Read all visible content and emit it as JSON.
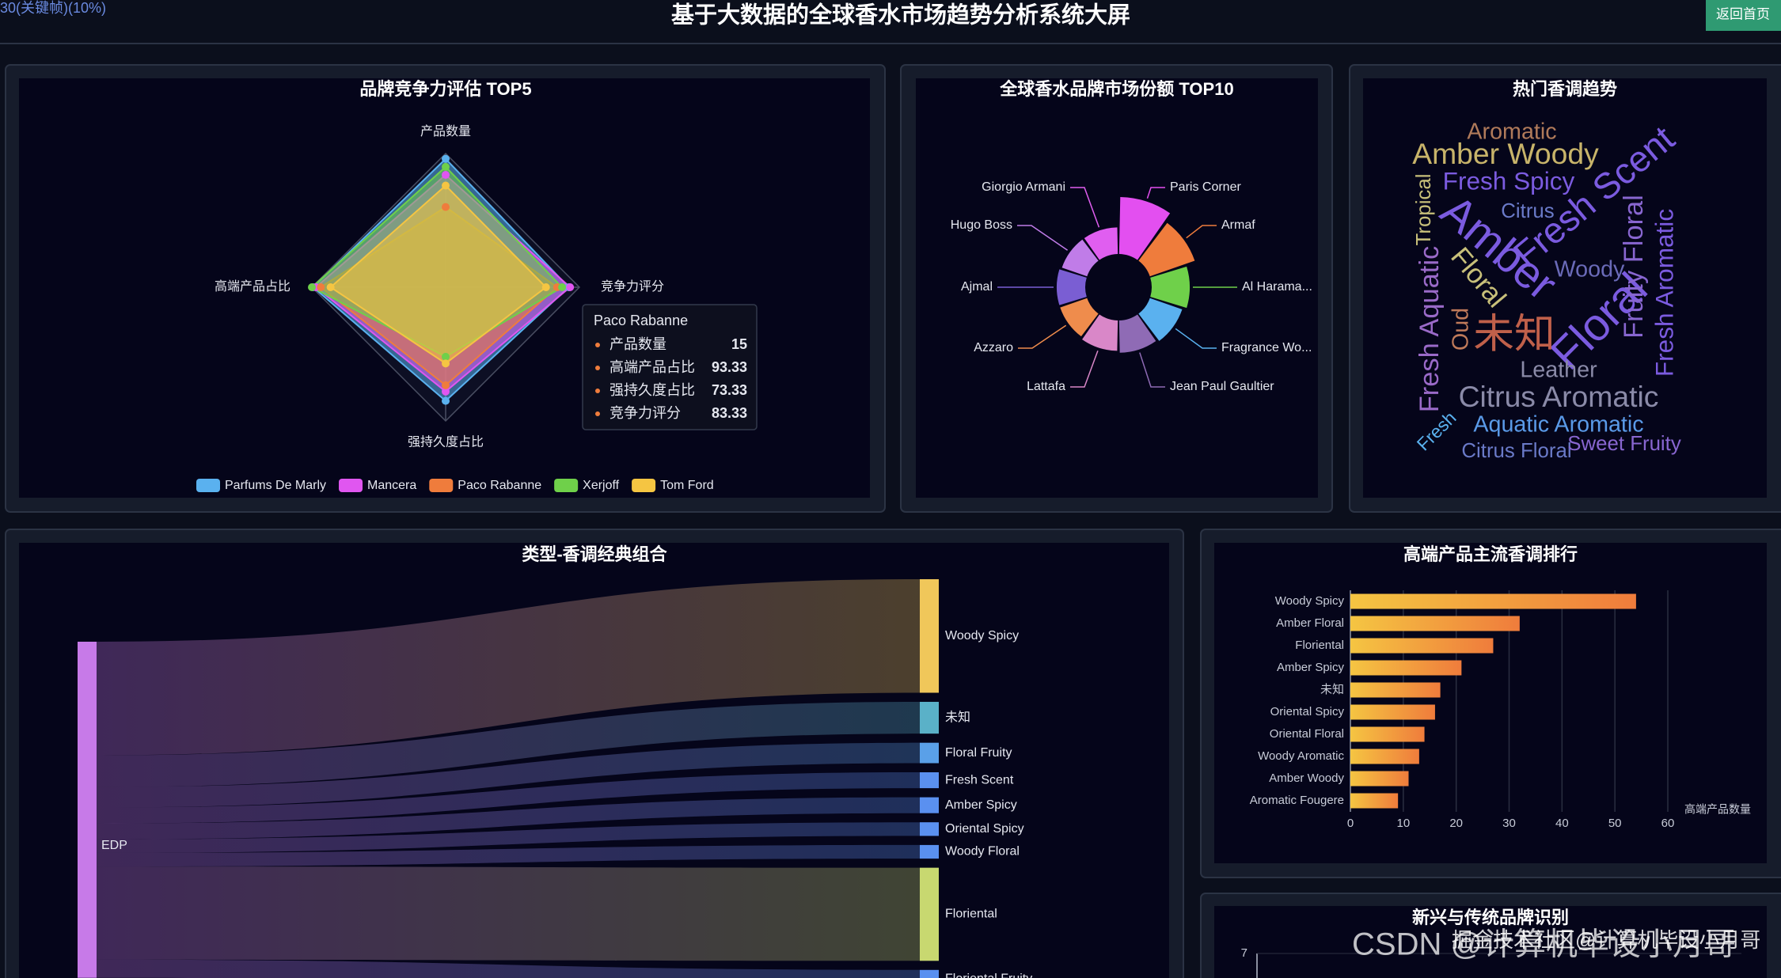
{
  "header": {
    "title": "基于大数据的全球香水市场趋势分析系统大屏",
    "frame_note": "30(关键帧)(10%)",
    "back_button": "返回首页"
  },
  "radar": {
    "type": "radar",
    "title": "品牌竞争力评估 TOP5",
    "indicators": [
      {
        "name": "产品数量",
        "max": 25
      },
      {
        "name": "高端产品占比",
        "max": 100
      },
      {
        "name": "强持久度占比",
        "max": 100
      },
      {
        "name": "竞争力评分",
        "max": 100
      }
    ],
    "series": [
      {
        "name": "Parfums De Marly",
        "color": "#5ab1ef",
        "values": [
          24,
          99,
          85,
          92
        ]
      },
      {
        "name": "Mancera",
        "color": "#e056f0",
        "values": [
          21,
          97,
          78,
          93
        ]
      },
      {
        "name": "Paco Rabanne",
        "color": "#ef7c3c",
        "values": [
          15,
          93.33,
          73.33,
          83.33
        ]
      },
      {
        "name": "Xerjoff",
        "color": "#6fd04a",
        "values": [
          22.5,
          100,
          52,
          87
        ]
      },
      {
        "name": "Tom Ford",
        "color": "#f5c542",
        "values": [
          19,
          86,
          57,
          75
        ]
      }
    ]
  },
  "pie": {
    "type": "pie",
    "title": "全球香水品牌市场份额 TOP10",
    "categories": [
      "Paris Corner",
      "Armaf",
      "Al Harama...",
      "Fragrance Wo...",
      "Jean Paul Gaultier",
      "Lattafa",
      "Azzaro",
      "Ajmal",
      "Hugo Boss",
      "Giorgio Armani"
    ],
    "values": [
      30,
      25,
      20,
      18,
      17,
      16,
      15,
      15,
      14,
      14
    ],
    "colors": [
      "#e34ff0",
      "#ef7c3c",
      "#6fd04a",
      "#5ab1ef",
      "#8f6bb5",
      "#d987c8",
      "#ef8c4c",
      "#7a5ed3",
      "#c07ce8",
      "#e05ef0"
    ]
  },
  "wordcloud": {
    "type": "wordcloud",
    "title": "热门香调趋势",
    "words": [
      {
        "text": "Aromatic",
        "color": "#b07a5a",
        "weight": 20
      },
      {
        "text": "Amber Woody",
        "color": "#c8b46a",
        "weight": 26
      },
      {
        "text": "Fresh Spicy",
        "color": "#7b5be0",
        "weight": 22
      },
      {
        "text": "Citrus",
        "color": "#6a7ac8",
        "weight": 18
      },
      {
        "text": "Fresh Scent",
        "color": "#7b5be0",
        "weight": 32
      },
      {
        "text": "Amber",
        "color": "#7b5be0",
        "weight": 40
      },
      {
        "text": "Floral",
        "color": "#7b5be0",
        "weight": 40
      },
      {
        "text": "Tropical",
        "color": "#c8c07a",
        "weight": 18
      },
      {
        "text": "Floral",
        "color": "#c8c07a",
        "weight": 24
      },
      {
        "text": "Woody",
        "color": "#6a6ab8",
        "weight": 20
      },
      {
        "text": "Fruity Floral",
        "color": "#8866d0",
        "weight": 24
      },
      {
        "text": "Fresh Aromatic",
        "color": "#7b5be0",
        "weight": 22
      },
      {
        "text": "Fresh Aquatic",
        "color": "#9a6ac8",
        "weight": 24
      },
      {
        "text": "Oud",
        "color": "#c07a5a",
        "weight": 20
      },
      {
        "text": "未知",
        "color": "#c0604a",
        "weight": 36
      },
      {
        "text": "Leather",
        "color": "#8a8aa8",
        "weight": 20
      },
      {
        "text": "Citrus Aromatic",
        "color": "#8a8aa8",
        "weight": 26
      },
      {
        "text": "Aquatic Aromatic",
        "color": "#5a9ae8",
        "weight": 20
      },
      {
        "text": "Fresh",
        "color": "#5ab1ef",
        "weight": 16
      },
      {
        "text": "Citrus Floral",
        "color": "#6a7ac8",
        "weight": 18
      },
      {
        "text": "Sweet Fruity",
        "color": "#8866d0",
        "weight": 18
      }
    ]
  },
  "sankey": {
    "type": "sankey",
    "title": "类型-香调经典组合",
    "source": "EDP",
    "source_color": "#c77ae8",
    "targets": [
      "Woody Spicy",
      "未知",
      "Floral Fruity",
      "Fresh Scent",
      "Amber Spicy",
      "Oriental Spicy",
      "Woody Floral",
      "Floriental",
      "Floriental Fruity"
    ],
    "values": [
      50,
      14,
      9,
      7,
      7,
      6,
      6,
      41,
      8
    ],
    "colors": [
      "#f0c75a",
      "#5ab1c8",
      "#5aa0e8",
      "#5a90f0",
      "#5a90f0",
      "#5a90f0",
      "#5a90f0",
      "#c8d870",
      "#5a90f0"
    ]
  },
  "bar": {
    "type": "bar",
    "orientation": "horizontal",
    "title": "高端产品主流香调排行",
    "x_label": "高端产品数量",
    "categories": [
      "Woody Spicy",
      "Amber Floral",
      "Floriental",
      "Amber Spicy",
      "未知",
      "Oriental Spicy",
      "Oriental Floral",
      "Woody Aromatic",
      "Amber Woody",
      "Aromatic Fougere"
    ],
    "values": [
      54,
      32,
      27,
      21,
      17,
      16,
      14,
      13,
      11,
      9
    ],
    "colors": [
      "#f5c542",
      "#ef7c3c"
    ],
    "xlim": [
      0,
      60
    ],
    "xticks": [
      0,
      10,
      20,
      30,
      40,
      50,
      60
    ],
    "grid": true
  },
  "scatter": {
    "type": "scatter",
    "title": "新兴与传统品牌识别",
    "yticks": [
      7
    ]
  },
  "watermarks": [
    "掘金技术社区@计算机毕设小月哥",
    "CSDN @计算机毕设小月哥"
  ]
}
